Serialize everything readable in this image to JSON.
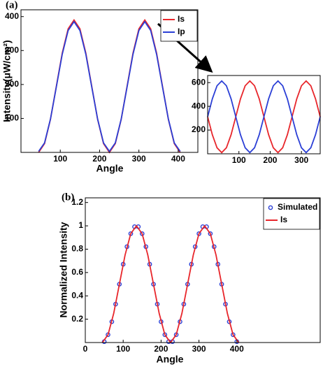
{
  "chart_data": [
    {
      "type": "line",
      "label": "(a)",
      "xlabel": "Angle",
      "ylabel": "Intensity(μW/cm²)",
      "xlim": [
        0,
        450
      ],
      "ylim": [
        0,
        420
      ],
      "xticks": [
        100,
        200,
        300,
        400
      ],
      "yticks": [
        100,
        200,
        300,
        400
      ],
      "legend": "upper right",
      "x": [
        45,
        60,
        75,
        90,
        105,
        120,
        135,
        150,
        165,
        180,
        195,
        210,
        225,
        240,
        255,
        270,
        285,
        300,
        315,
        330,
        345,
        360,
        375,
        390,
        405
      ],
      "series": [
        {
          "name": "Is",
          "color": "#e8262b",
          "values": [
            0,
            26.1,
            97.5,
            195,
            292.5,
            363.9,
            390,
            363.9,
            292.5,
            195,
            97.5,
            26.1,
            0,
            26.1,
            97.5,
            195,
            292.5,
            363.9,
            390,
            363.9,
            292.5,
            195,
            97.5,
            26.1,
            0
          ]
        },
        {
          "name": "Ip",
          "color": "#2b3fd6",
          "values": [
            3,
            28,
            98,
            193,
            289,
            359,
            385,
            359,
            289,
            193,
            98,
            28,
            3,
            28,
            98,
            193,
            289,
            359,
            385,
            359,
            289,
            193,
            98,
            28,
            3
          ]
        }
      ]
    },
    {
      "type": "line",
      "xlim": [
        0,
        360
      ],
      "ylim": [
        0,
        660
      ],
      "xticks": [
        100,
        200,
        300
      ],
      "yticks": [
        200,
        400,
        600
      ],
      "x": [
        0,
        15,
        30,
        45,
        60,
        75,
        90,
        105,
        120,
        135,
        150,
        165,
        180,
        195,
        210,
        225,
        240,
        255,
        270,
        285,
        300,
        315,
        330,
        345,
        360
      ],
      "series": [
        {
          "color": "#e8262b",
          "values": [
            312,
            161,
            50.5,
            10,
            50.5,
            161,
            312,
            463,
            573.5,
            614,
            573.5,
            463,
            312,
            161,
            50.5,
            10,
            50.5,
            161,
            312,
            463,
            573.5,
            614,
            573.5,
            463,
            312
          ]
        },
        {
          "color": "#2b3fd6",
          "values": [
            312,
            463,
            573.5,
            614,
            573.5,
            463,
            312,
            161,
            50.5,
            10,
            50.5,
            161,
            312,
            463,
            573.5,
            614,
            573.5,
            463,
            312,
            161,
            50.5,
            10,
            50.5,
            161,
            312
          ]
        }
      ]
    },
    {
      "type": "line",
      "label": "(b)",
      "xlabel": "Angle",
      "ylabel": "Normalized Intensity",
      "xlim": [
        0,
        620
      ],
      "ylim": [
        0,
        1.24
      ],
      "xticks": [
        0,
        100,
        200,
        300,
        400
      ],
      "yticks": [
        0.2,
        0.4,
        0.6,
        0.8,
        1,
        1.2
      ],
      "legend": "upper right",
      "series": [
        {
          "name": "Simulated",
          "color": "#2b3fd6",
          "mode": "markers",
          "x": [
            50,
            60,
            70,
            80,
            90,
            100,
            110,
            120,
            130,
            140,
            150,
            160,
            170,
            180,
            190,
            200,
            210,
            220,
            230,
            240,
            250,
            260,
            270,
            280,
            290,
            300,
            310,
            320,
            330,
            340,
            350,
            360,
            370,
            380,
            390,
            400
          ],
          "values": [
            0.0076,
            0.067,
            0.1786,
            0.329,
            0.5,
            0.671,
            0.8214,
            0.933,
            0.9924,
            0.9924,
            0.933,
            0.8214,
            0.671,
            0.5,
            0.329,
            0.1786,
            0.067,
            0.0076,
            0.0076,
            0.067,
            0.1786,
            0.329,
            0.5,
            0.671,
            0.8214,
            0.933,
            0.9924,
            0.9924,
            0.933,
            0.8214,
            0.671,
            0.5,
            0.329,
            0.1786,
            0.067,
            0.0076
          ]
        },
        {
          "name": "Is",
          "color": "#e8262b",
          "mode": "lines",
          "x": [
            45,
            60,
            75,
            90,
            105,
            120,
            135,
            150,
            165,
            180,
            195,
            210,
            225,
            240,
            255,
            270,
            285,
            300,
            315,
            330,
            345,
            360,
            375,
            390,
            405
          ],
          "values": [
            0,
            0.067,
            0.25,
            0.5,
            0.75,
            0.933,
            1,
            0.933,
            0.75,
            0.5,
            0.25,
            0.067,
            0,
            0.067,
            0.25,
            0.5,
            0.75,
            0.933,
            1,
            0.933,
            0.75,
            0.5,
            0.25,
            0.067,
            0
          ]
        }
      ]
    }
  ]
}
